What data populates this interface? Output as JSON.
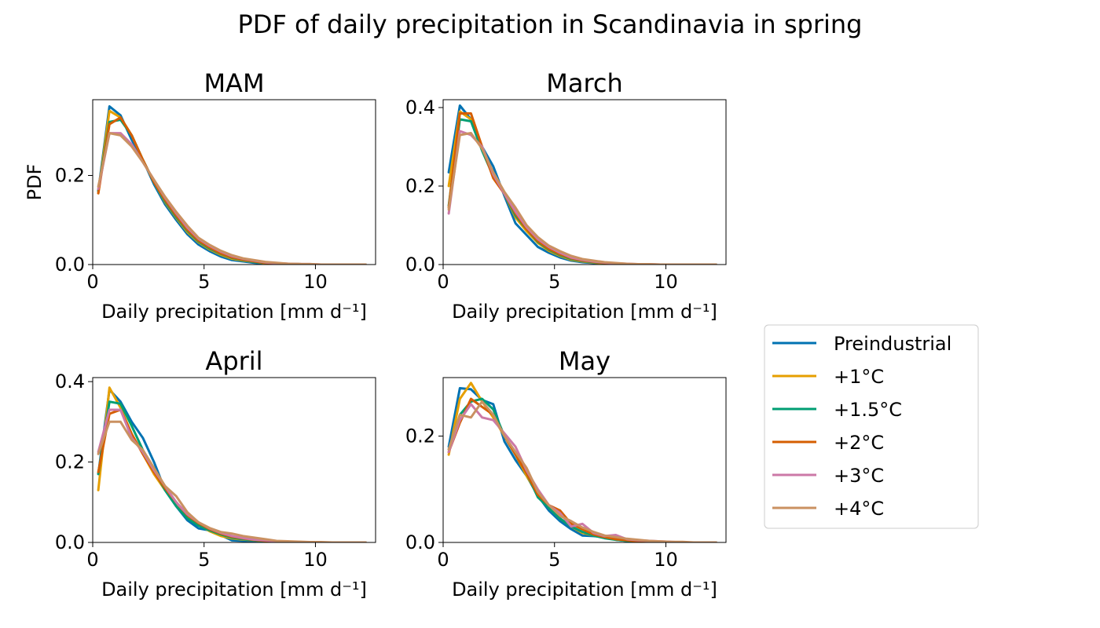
{
  "figure": {
    "title": "PDF of daily precipitation in Scandinavia in spring"
  },
  "legend": {
    "placement": "right"
  },
  "series_style": [
    {
      "name": "Preindustrial",
      "color": "#0072b2"
    },
    {
      "name": "+1°C",
      "color": "#e69f00"
    },
    {
      "name": "+1.5°C",
      "color": "#009e73"
    },
    {
      "name": "+2°C",
      "color": "#d55e00"
    },
    {
      "name": "+3°C",
      "color": "#cc79a7"
    },
    {
      "name": "+4°C",
      "color": "#ca9161"
    }
  ],
  "chart_data": [
    {
      "type": "line",
      "title": "MAM",
      "xlabel": "Daily precipitation [mm d⁻¹]",
      "ylabel": "PDF",
      "xlim": [
        0,
        12.7
      ],
      "ylim": [
        0,
        0.37
      ],
      "xticks": [
        0,
        5,
        10
      ],
      "yticks": [
        0.0,
        0.2
      ],
      "ytick_labels": [
        "0.0",
        "0.2"
      ],
      "x": [
        0.25,
        0.75,
        1.25,
        1.75,
        2.25,
        2.75,
        3.25,
        3.75,
        4.25,
        4.75,
        5.25,
        5.75,
        6.25,
        6.75,
        7.25,
        7.75,
        8.25,
        8.75,
        9.25,
        9.75,
        10.25,
        10.75,
        11.25,
        11.75,
        12.25
      ],
      "series": [
        {
          "name": "Preindustrial",
          "values": [
            0.165,
            0.355,
            0.335,
            0.28,
            0.235,
            0.18,
            0.135,
            0.1,
            0.068,
            0.045,
            0.03,
            0.018,
            0.01,
            0.007,
            0.004,
            0.002,
            0.001,
            0.001,
            0.0,
            0.0,
            0.0,
            0.0,
            0.0,
            0.0,
            0.0
          ]
        },
        {
          "name": "+1°C",
          "values": [
            0.16,
            0.345,
            0.33,
            0.29,
            0.235,
            0.185,
            0.14,
            0.105,
            0.073,
            0.05,
            0.034,
            0.022,
            0.013,
            0.009,
            0.006,
            0.003,
            0.002,
            0.001,
            0.001,
            0.0,
            0.0,
            0.0,
            0.0,
            0.0,
            0.0
          ]
        },
        {
          "name": "+1.5°C",
          "values": [
            0.165,
            0.32,
            0.325,
            0.29,
            0.235,
            0.185,
            0.142,
            0.107,
            0.076,
            0.052,
            0.036,
            0.024,
            0.015,
            0.01,
            0.006,
            0.004,
            0.002,
            0.001,
            0.001,
            0.0,
            0.0,
            0.0,
            0.0,
            0.0,
            0.0
          ]
        },
        {
          "name": "+2°C",
          "values": [
            0.16,
            0.315,
            0.33,
            0.29,
            0.235,
            0.185,
            0.145,
            0.11,
            0.078,
            0.054,
            0.038,
            0.025,
            0.016,
            0.011,
            0.007,
            0.004,
            0.002,
            0.001,
            0.001,
            0.0,
            0.0,
            0.0,
            0.0,
            0.0,
            0.0
          ]
        },
        {
          "name": "+3°C",
          "values": [
            0.17,
            0.295,
            0.295,
            0.27,
            0.23,
            0.19,
            0.15,
            0.115,
            0.083,
            0.058,
            0.042,
            0.029,
            0.019,
            0.013,
            0.009,
            0.005,
            0.003,
            0.002,
            0.001,
            0.001,
            0.0,
            0.0,
            0.0,
            0.0,
            0.0
          ]
        },
        {
          "name": "+4°C",
          "values": [
            0.175,
            0.295,
            0.29,
            0.265,
            0.23,
            0.19,
            0.152,
            0.118,
            0.087,
            0.06,
            0.044,
            0.031,
            0.021,
            0.014,
            0.01,
            0.006,
            0.004,
            0.002,
            0.001,
            0.001,
            0.0,
            0.0,
            0.0,
            0.0,
            0.0
          ]
        }
      ]
    },
    {
      "type": "line",
      "title": "March",
      "xlabel": "Daily precipitation [mm d⁻¹]",
      "ylabel": "",
      "xlim": [
        0,
        12.7
      ],
      "ylim": [
        0,
        0.42
      ],
      "xticks": [
        0,
        5,
        10
      ],
      "yticks": [
        0.0,
        0.2,
        0.4
      ],
      "ytick_labels": [
        "0.0",
        "0.2",
        "0.4"
      ],
      "x": [
        0.25,
        0.75,
        1.25,
        1.75,
        2.25,
        2.75,
        3.25,
        3.75,
        4.25,
        4.75,
        5.25,
        5.75,
        6.25,
        6.75,
        7.25,
        7.75,
        8.25,
        8.75,
        9.25,
        9.75,
        10.25,
        10.75,
        11.25,
        11.75,
        12.25
      ],
      "series": [
        {
          "name": "Preindustrial",
          "values": [
            0.235,
            0.405,
            0.37,
            0.3,
            0.25,
            0.175,
            0.105,
            0.075,
            0.045,
            0.03,
            0.018,
            0.01,
            0.006,
            0.004,
            0.002,
            0.001,
            0.001,
            0.0,
            0.0,
            0.0,
            0.0,
            0.0,
            0.0,
            0.0,
            0.0
          ]
        },
        {
          "name": "+1°C",
          "values": [
            0.2,
            0.39,
            0.37,
            0.3,
            0.23,
            0.18,
            0.12,
            0.085,
            0.055,
            0.035,
            0.022,
            0.012,
            0.008,
            0.005,
            0.003,
            0.002,
            0.001,
            0.0,
            0.0,
            0.0,
            0.0,
            0.0,
            0.0,
            0.0,
            0.0
          ]
        },
        {
          "name": "+1.5°C",
          "values": [
            0.15,
            0.37,
            0.365,
            0.29,
            0.225,
            0.18,
            0.125,
            0.09,
            0.058,
            0.038,
            0.024,
            0.014,
            0.009,
            0.006,
            0.004,
            0.002,
            0.001,
            0.001,
            0.0,
            0.0,
            0.0,
            0.0,
            0.0,
            0.0,
            0.0
          ]
        },
        {
          "name": "+2°C",
          "values": [
            0.145,
            0.385,
            0.385,
            0.3,
            0.22,
            0.18,
            0.13,
            0.09,
            0.06,
            0.04,
            0.026,
            0.016,
            0.01,
            0.007,
            0.004,
            0.002,
            0.001,
            0.001,
            0.0,
            0.0,
            0.0,
            0.0,
            0.0,
            0.0,
            0.0
          ]
        },
        {
          "name": "+3°C",
          "values": [
            0.13,
            0.34,
            0.33,
            0.3,
            0.23,
            0.18,
            0.135,
            0.095,
            0.065,
            0.045,
            0.03,
            0.018,
            0.012,
            0.008,
            0.005,
            0.003,
            0.002,
            0.001,
            0.001,
            0.0,
            0.0,
            0.0,
            0.0,
            0.0,
            0.0
          ]
        },
        {
          "name": "+4°C",
          "values": [
            0.14,
            0.33,
            0.335,
            0.295,
            0.235,
            0.185,
            0.145,
            0.1,
            0.07,
            0.048,
            0.034,
            0.022,
            0.014,
            0.01,
            0.006,
            0.004,
            0.002,
            0.001,
            0.001,
            0.0,
            0.0,
            0.0,
            0.0,
            0.0,
            0.0
          ]
        }
      ]
    },
    {
      "type": "line",
      "title": "April",
      "xlabel": "Daily precipitation [mm d⁻¹]",
      "ylabel": "",
      "xlim": [
        0,
        12.7
      ],
      "ylim": [
        0,
        0.41
      ],
      "xticks": [
        0,
        5,
        10
      ],
      "yticks": [
        0.0,
        0.2,
        0.4
      ],
      "ytick_labels": [
        "0.0",
        "0.2",
        "0.4"
      ],
      "x": [
        0.25,
        0.75,
        1.25,
        1.75,
        2.25,
        2.75,
        3.25,
        3.75,
        4.25,
        4.75,
        5.25,
        5.75,
        6.25,
        6.75,
        7.25,
        7.75,
        8.25,
        8.75,
        9.25,
        9.75,
        10.25,
        10.75,
        11.25,
        11.75,
        12.25
      ],
      "series": [
        {
          "name": "Preindustrial",
          "values": [
            0.17,
            0.38,
            0.35,
            0.3,
            0.26,
            0.2,
            0.13,
            0.09,
            0.055,
            0.035,
            0.03,
            0.018,
            0.005,
            0.004,
            0.003,
            0.002,
            0.001,
            0.001,
            0.0,
            0.0,
            0.0,
            0.0,
            0.0,
            0.0,
            0.0
          ]
        },
        {
          "name": "+1°C",
          "values": [
            0.13,
            0.385,
            0.335,
            0.27,
            0.22,
            0.17,
            0.13,
            0.1,
            0.065,
            0.045,
            0.028,
            0.016,
            0.01,
            0.007,
            0.005,
            0.003,
            0.002,
            0.001,
            0.001,
            0.0,
            0.0,
            0.0,
            0.0,
            0.0,
            0.0
          ]
        },
        {
          "name": "+1.5°C",
          "values": [
            0.17,
            0.35,
            0.345,
            0.29,
            0.23,
            0.18,
            0.13,
            0.09,
            0.06,
            0.042,
            0.03,
            0.02,
            0.012,
            0.008,
            0.005,
            0.003,
            0.002,
            0.001,
            0.001,
            0.0,
            0.0,
            0.0,
            0.0,
            0.0,
            0.0
          ]
        },
        {
          "name": "+2°C",
          "values": [
            0.175,
            0.32,
            0.33,
            0.27,
            0.22,
            0.175,
            0.135,
            0.1,
            0.068,
            0.048,
            0.033,
            0.022,
            0.014,
            0.01,
            0.006,
            0.004,
            0.002,
            0.001,
            0.001,
            0.0,
            0.0,
            0.0,
            0.0,
            0.0,
            0.0
          ]
        },
        {
          "name": "+3°C",
          "values": [
            0.225,
            0.33,
            0.33,
            0.26,
            0.225,
            0.18,
            0.14,
            0.1,
            0.07,
            0.05,
            0.035,
            0.024,
            0.016,
            0.011,
            0.007,
            0.005,
            0.003,
            0.002,
            0.001,
            0.001,
            0.0,
            0.0,
            0.0,
            0.0,
            0.0
          ]
        },
        {
          "name": "+4°C",
          "values": [
            0.22,
            0.3,
            0.3,
            0.255,
            0.23,
            0.185,
            0.14,
            0.115,
            0.075,
            0.05,
            0.036,
            0.026,
            0.022,
            0.016,
            0.012,
            0.008,
            0.004,
            0.003,
            0.002,
            0.001,
            0.001,
            0.0,
            0.0,
            0.0,
            0.0
          ]
        }
      ]
    },
    {
      "type": "line",
      "title": "May",
      "xlabel": "Daily precipitation [mm d⁻¹]",
      "ylabel": "",
      "xlim": [
        0,
        12.7
      ],
      "ylim": [
        0,
        0.31
      ],
      "xticks": [
        0,
        5,
        10
      ],
      "yticks": [
        0.0,
        0.2
      ],
      "ytick_labels": [
        "0.0",
        "0.2"
      ],
      "x": [
        0.25,
        0.75,
        1.25,
        1.75,
        2.25,
        2.75,
        3.25,
        3.75,
        4.25,
        4.75,
        5.25,
        5.75,
        6.25,
        6.75,
        7.25,
        7.75,
        8.25,
        8.75,
        9.25,
        9.75,
        10.25,
        10.75,
        11.25,
        11.75,
        12.25
      ],
      "series": [
        {
          "name": "Preindustrial",
          "values": [
            0.18,
            0.29,
            0.288,
            0.268,
            0.26,
            0.19,
            0.155,
            0.125,
            0.088,
            0.06,
            0.04,
            0.025,
            0.013,
            0.012,
            0.01,
            0.005,
            0.003,
            0.002,
            0.001,
            0.001,
            0.0,
            0.0,
            0.0,
            0.0,
            0.0
          ]
        },
        {
          "name": "+1°C",
          "values": [
            0.165,
            0.27,
            0.3,
            0.265,
            0.235,
            0.2,
            0.165,
            0.125,
            0.09,
            0.065,
            0.045,
            0.03,
            0.018,
            0.013,
            0.009,
            0.006,
            0.004,
            0.002,
            0.001,
            0.001,
            0.0,
            0.0,
            0.0,
            0.0,
            0.0
          ]
        },
        {
          "name": "+1.5°C",
          "values": [
            0.175,
            0.24,
            0.265,
            0.27,
            0.25,
            0.2,
            0.165,
            0.13,
            0.085,
            0.065,
            0.045,
            0.03,
            0.02,
            0.013,
            0.008,
            0.005,
            0.003,
            0.002,
            0.001,
            0.001,
            0.0,
            0.0,
            0.0,
            0.0,
            0.0
          ]
        },
        {
          "name": "+2°C",
          "values": [
            0.17,
            0.225,
            0.27,
            0.255,
            0.24,
            0.2,
            0.165,
            0.13,
            0.09,
            0.07,
            0.06,
            0.035,
            0.025,
            0.015,
            0.01,
            0.006,
            0.004,
            0.002,
            0.001,
            0.001,
            0.0,
            0.0,
            0.0,
            0.0,
            0.0
          ]
        },
        {
          "name": "+3°C",
          "values": [
            0.17,
            0.23,
            0.26,
            0.235,
            0.23,
            0.205,
            0.18,
            0.135,
            0.1,
            0.07,
            0.055,
            0.03,
            0.035,
            0.018,
            0.012,
            0.014,
            0.006,
            0.004,
            0.003,
            0.002,
            0.001,
            0.0,
            0.0,
            0.0,
            0.0
          ]
        },
        {
          "name": "+4°C",
          "values": [
            0.175,
            0.24,
            0.235,
            0.265,
            0.24,
            0.2,
            0.17,
            0.14,
            0.095,
            0.07,
            0.05,
            0.04,
            0.028,
            0.02,
            0.013,
            0.01,
            0.007,
            0.005,
            0.003,
            0.002,
            0.001,
            0.001,
            0.0,
            0.0,
            0.0
          ]
        }
      ]
    }
  ]
}
